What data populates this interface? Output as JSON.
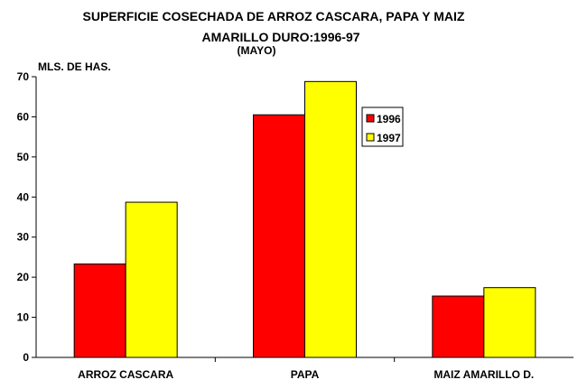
{
  "chart_data": {
    "type": "bar",
    "title_line1": "SUPERFICIE COSECHADA DE ARROZ CASCARA, PAPA Y MAIZ",
    "title_line2": "AMARILLO DURO:1996-97",
    "subtitle": "(MAYO)",
    "ylabel": "MLS. DE HAS.",
    "xlabel": "",
    "categories": [
      "ARROZ CASCARA",
      "PAPA",
      "MAIZ AMARILLO D."
    ],
    "series": [
      {
        "name": "1996",
        "color": "#ff0000",
        "values": [
          23.3,
          60.5,
          15.3
        ]
      },
      {
        "name": "1997",
        "color": "#ffff00",
        "values": [
          38.7,
          68.8,
          17.4
        ]
      }
    ],
    "ylim": [
      0,
      70
    ],
    "yticks": [
      0,
      10,
      20,
      30,
      40,
      50,
      60,
      70
    ],
    "grid": false,
    "legend_position": "top-right"
  }
}
